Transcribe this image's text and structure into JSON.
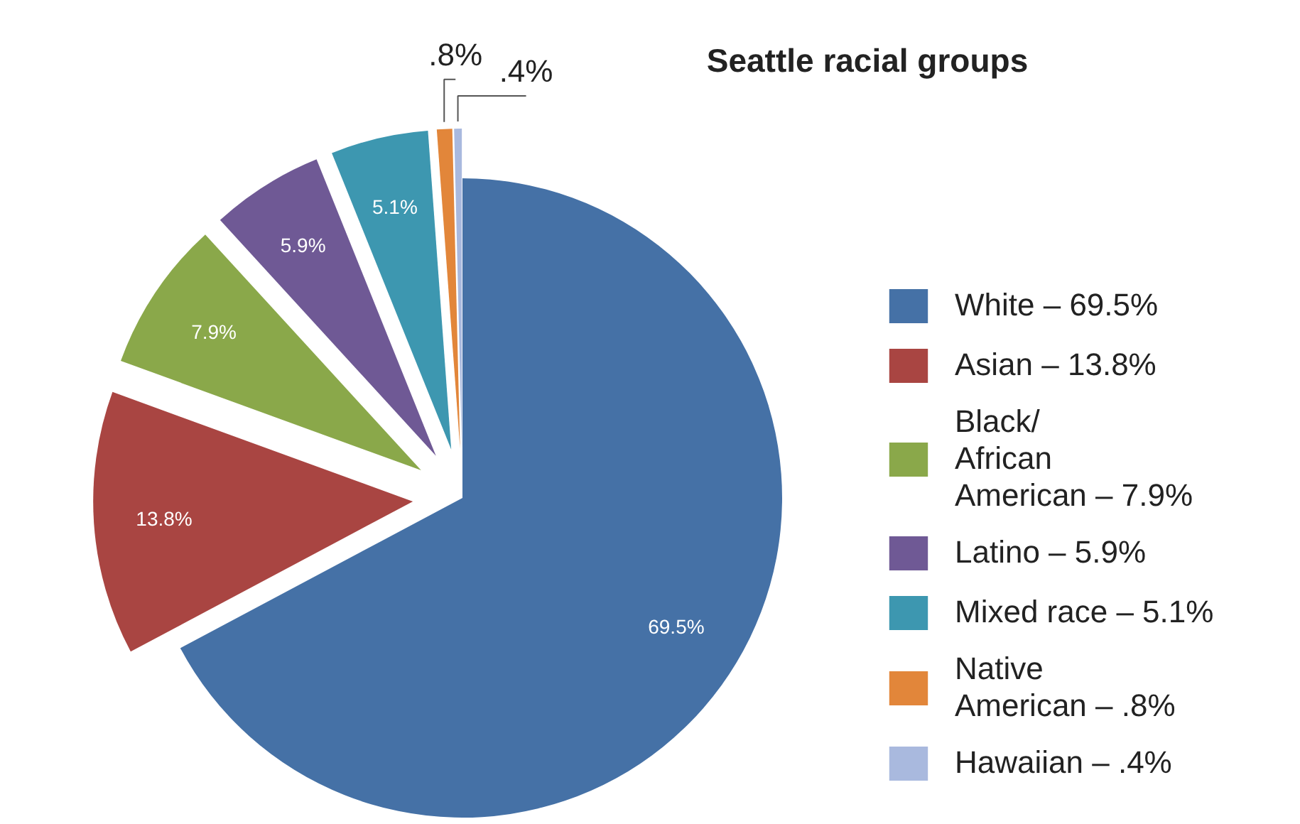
{
  "chart_data": {
    "type": "pie",
    "legend_title": "Seattle racial groups",
    "categories": [
      "White – 69.5%",
      "Asian – 13.8%",
      "Black/\nAfrican\nAmerican – 7.9%",
      "Latino – 5.9%",
      "Mixed race – 5.1%",
      "Native\nAmerican – .8%",
      "Hawaiian – .4%"
    ],
    "values": [
      69.5,
      13.8,
      7.9,
      5.9,
      5.1,
      0.8,
      0.4
    ],
    "colors": [
      "#4571a6",
      "#a94542",
      "#8aa84a",
      "#6f5995",
      "#3d97b0",
      "#e2863a",
      "#a9b9de"
    ],
    "value_labels": [
      "69.5%",
      "13.8%",
      "7.9%",
      "5.9%",
      "5.1%",
      ".8%",
      ".4%"
    ],
    "legend": "right"
  }
}
